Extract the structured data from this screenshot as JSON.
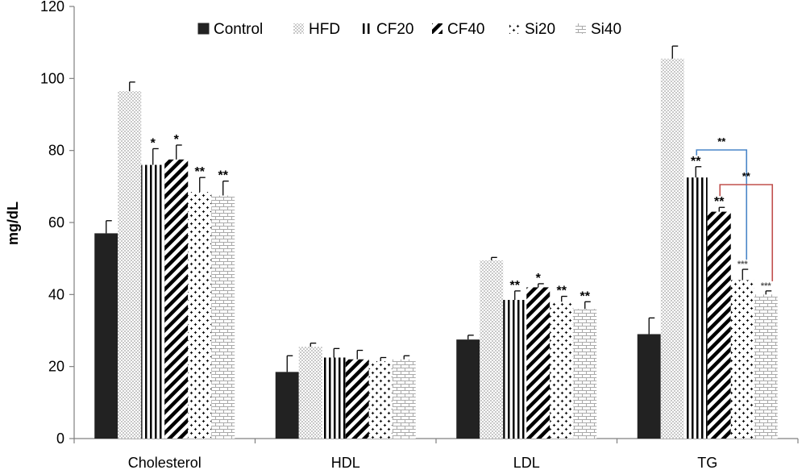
{
  "chart_data": {
    "type": "bar",
    "ylabel": "mg/dL",
    "xlabel": "",
    "ylim": [
      0,
      120
    ],
    "yticks": [
      "0",
      "20",
      "40",
      "60",
      "80",
      "100",
      "120"
    ],
    "grid": false,
    "legend_position": "top",
    "categories": [
      "Cholesterol",
      "HDL",
      "LDL",
      "TG"
    ],
    "series": [
      {
        "name": "Control",
        "values": [
          57,
          18.5,
          27.5,
          29
        ],
        "errors": [
          3.5,
          4.5,
          1.2,
          4.5
        ],
        "markers": [
          "",
          "",
          "",
          ""
        ]
      },
      {
        "name": "HFD",
        "values": [
          96.5,
          25.5,
          49.5,
          105.5
        ],
        "errors": [
          2.5,
          1.0,
          0.8,
          3.5
        ],
        "markers": [
          "",
          "",
          "",
          ""
        ]
      },
      {
        "name": "CF20",
        "values": [
          76,
          22.5,
          38.5,
          72.5
        ],
        "errors": [
          4.5,
          2.5,
          2.5,
          3.0
        ],
        "markers": [
          "*",
          "",
          "**",
          "**"
        ]
      },
      {
        "name": "CF40",
        "values": [
          77.5,
          22,
          42,
          63
        ],
        "errors": [
          4.0,
          2.5,
          1.0,
          1.2
        ],
        "markers": [
          "*",
          "",
          "*",
          "**"
        ]
      },
      {
        "name": "Si20",
        "values": [
          68.5,
          21.5,
          38,
          44
        ],
        "errors": [
          4.0,
          1.0,
          1.5,
          3.0
        ],
        "markers": [
          "**",
          "",
          "**",
          "***"
        ]
      },
      {
        "name": "Si40",
        "values": [
          67.5,
          22,
          36,
          40
        ],
        "errors": [
          4.0,
          1.0,
          2.0,
          1.0
        ],
        "markers": [
          "**",
          "",
          "**",
          "***"
        ]
      }
    ],
    "comparisons": [
      {
        "category": "TG",
        "from": "CF20",
        "to": "Si20",
        "label": "**",
        "color": "#4a86c8"
      },
      {
        "category": "TG",
        "from": "CF40",
        "to": "Si40",
        "label": "**",
        "color": "#c0504d"
      }
    ]
  }
}
